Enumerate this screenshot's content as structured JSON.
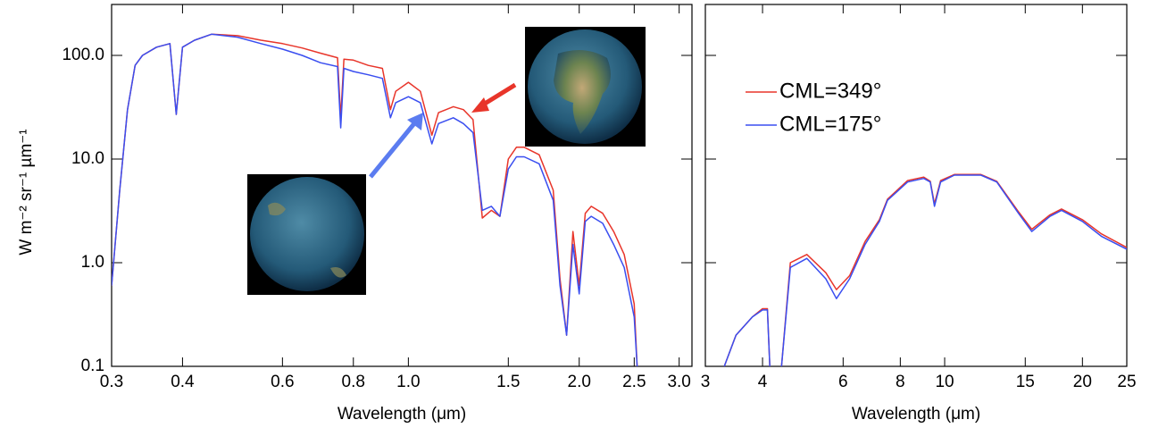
{
  "chart_data": [
    {
      "type": "line",
      "x_label": "Wavelength (μm)",
      "y_label": "W m⁻² sr⁻¹ µm⁻¹",
      "xscale": "log",
      "yscale": "log",
      "xlim": [
        0.3,
        3.16
      ],
      "ylim": [
        0.1,
        310
      ],
      "xticks": [
        0.3,
        0.4,
        0.6,
        0.8,
        {
          "value": 1,
          "label": "1.0"
        },
        1.5,
        {
          "value": 2,
          "label": "2.0"
        },
        2.5,
        {
          "value": 3,
          "label": "3.0"
        }
      ],
      "yticks": [
        0.1,
        {
          "value": 1,
          "label": "1.0"
        },
        {
          "value": 10,
          "label": "10.0"
        },
        {
          "value": 100,
          "label": "100.0"
        }
      ],
      "x": [
        0.3,
        0.31,
        0.32,
        0.33,
        0.34,
        0.36,
        0.38,
        0.39,
        0.4,
        0.42,
        0.45,
        0.5,
        0.55,
        0.6,
        0.65,
        0.7,
        0.75,
        0.76,
        0.77,
        0.8,
        0.85,
        0.9,
        0.93,
        0.95,
        1.0,
        1.05,
        1.1,
        1.13,
        1.2,
        1.25,
        1.3,
        1.35,
        1.4,
        1.45,
        1.5,
        1.55,
        1.6,
        1.7,
        1.8,
        1.85,
        1.9,
        1.95,
        2.0,
        2.05,
        2.1,
        2.2,
        2.3,
        2.4,
        2.5,
        2.53
      ],
      "series": [
        {
          "name": "CML=349°",
          "color": "#e8352a",
          "values": [
            0.6,
            5,
            30,
            80,
            100,
            120,
            130,
            27,
            120,
            140,
            160,
            155,
            140,
            130,
            118,
            105,
            95,
            25,
            92,
            90,
            80,
            75,
            30,
            45,
            55,
            45,
            17,
            28,
            32,
            30,
            24,
            2.7,
            3.2,
            2.8,
            10,
            13,
            13,
            11,
            5,
            0.7,
            0.2,
            2,
            0.6,
            3,
            3.5,
            3,
            2,
            1.2,
            0.4,
            0.1
          ]
        },
        {
          "name": "CML=175°",
          "color": "#3a4ef0",
          "values": [
            0.6,
            5,
            30,
            80,
            100,
            120,
            130,
            27,
            120,
            140,
            160,
            150,
            130,
            115,
            100,
            85,
            78,
            20,
            75,
            70,
            65,
            60,
            25,
            35,
            40,
            35,
            14,
            22,
            25,
            22,
            18,
            3.2,
            3.5,
            2.8,
            8,
            10.5,
            10.5,
            9,
            4,
            0.6,
            0.2,
            1.5,
            0.5,
            2.5,
            2.8,
            2.4,
            1.5,
            0.9,
            0.3,
            0.1
          ]
        }
      ]
    },
    {
      "type": "line",
      "x_label": "Wavelength (μm)",
      "legend": "upper left",
      "xscale": "log",
      "yscale": "log",
      "xlim": [
        3,
        25
      ],
      "ylim": [
        0.1,
        310
      ],
      "xticks": [
        3,
        4,
        6,
        8,
        10,
        15,
        20,
        25
      ],
      "x": [
        3.3,
        3.5,
        3.8,
        4.0,
        4.1,
        4.15,
        4.25,
        4.4,
        4.6,
        5.0,
        5.5,
        5.8,
        6.2,
        6.7,
        7.2,
        7.5,
        8.3,
        9.0,
        9.3,
        9.5,
        9.8,
        10.5,
        12,
        13,
        14.5,
        15.5,
        17,
        18,
        20,
        22,
        25
      ],
      "series": [
        {
          "name": "CML=349°",
          "color": "#e8352a",
          "values": [
            0.1,
            0.2,
            0.3,
            0.36,
            0.36,
            0.1,
            null,
            0.1,
            1.0,
            1.2,
            0.8,
            0.55,
            0.75,
            1.6,
            2.6,
            4.1,
            6.2,
            6.7,
            6.1,
            3.7,
            6.2,
            7.1,
            7.1,
            6.1,
            3.1,
            2.1,
            2.9,
            3.3,
            2.6,
            1.9,
            1.4
          ]
        },
        {
          "name": "CML=175°",
          "color": "#3a4ef0",
          "values": [
            0.1,
            0.2,
            0.3,
            0.35,
            0.35,
            0.1,
            null,
            0.1,
            0.9,
            1.1,
            0.7,
            0.45,
            0.7,
            1.5,
            2.5,
            4,
            6,
            6.5,
            6,
            3.5,
            6,
            7,
            7,
            6,
            3,
            2,
            2.8,
            3.2,
            2.5,
            1.8,
            1.35
          ]
        }
      ]
    }
  ]
}
